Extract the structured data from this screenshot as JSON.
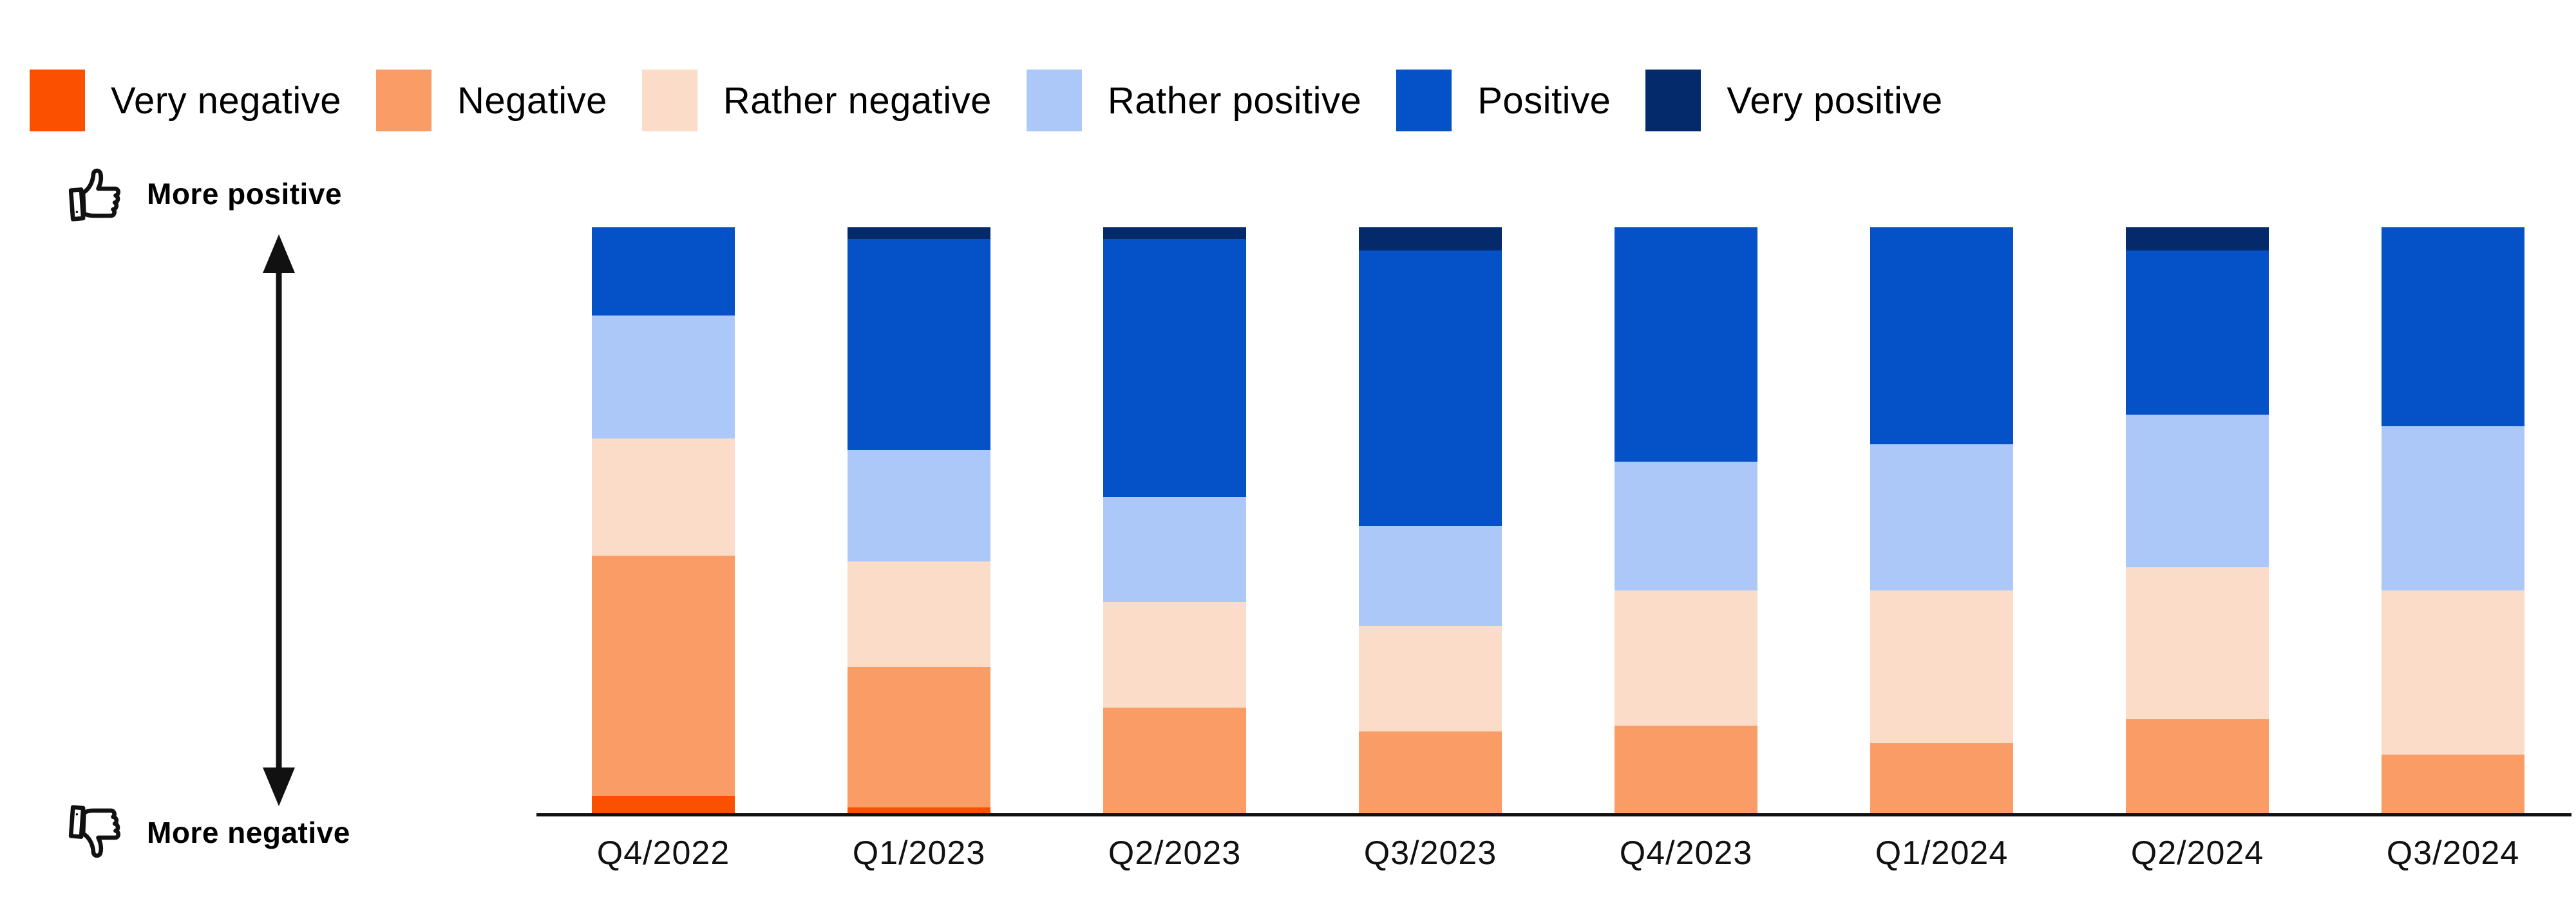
{
  "page": {
    "background": "#FFFFFF"
  },
  "legend": {
    "items": [
      {
        "label": "Very negative",
        "color": "#FB5000"
      },
      {
        "label": "Negative",
        "color": "#FA9C66"
      },
      {
        "label": "Rather negative",
        "color": "#FBDCC8"
      },
      {
        "label": "Rather positive",
        "color": "#ABC8F8"
      },
      {
        "label": "Positive",
        "color": "#0551C8"
      },
      {
        "label": "Very positive",
        "color": "#052A6C"
      }
    ]
  },
  "axis_annotations": {
    "top": "More positive",
    "bottom": "More negative"
  },
  "chart_data": {
    "type": "bar",
    "stacked": true,
    "unit": "percent",
    "title": "",
    "xlabel": "",
    "ylabel": "",
    "ylim": [
      0,
      100
    ],
    "grid": false,
    "legend_position": "top",
    "categories": [
      "Q4/2022",
      "Q1/2023",
      "Q2/2023",
      "Q3/2023",
      "Q4/2023",
      "Q1/2024",
      "Q2/2024",
      "Q3/2024"
    ],
    "series": [
      {
        "name": "Very negative",
        "color": "#FB5000",
        "values": [
          3,
          1,
          0,
          0,
          0,
          0,
          0,
          0
        ]
      },
      {
        "name": "Negative",
        "color": "#FA9C66",
        "values": [
          41,
          24,
          18,
          14,
          15,
          12,
          16,
          10
        ]
      },
      {
        "name": "Rather negative",
        "color": "#FBDCC8",
        "values": [
          20,
          18,
          18,
          18,
          23,
          26,
          26,
          28
        ]
      },
      {
        "name": "Rather positive",
        "color": "#ABC8F8",
        "values": [
          21,
          19,
          18,
          17,
          22,
          25,
          26,
          28
        ]
      },
      {
        "name": "Positive",
        "color": "#0551C8",
        "values": [
          15,
          36,
          44,
          47,
          40,
          37,
          28,
          34
        ]
      },
      {
        "name": "Very positive",
        "color": "#052A6C",
        "values": [
          0,
          2,
          2,
          4,
          0,
          0,
          4,
          0
        ]
      }
    ]
  }
}
